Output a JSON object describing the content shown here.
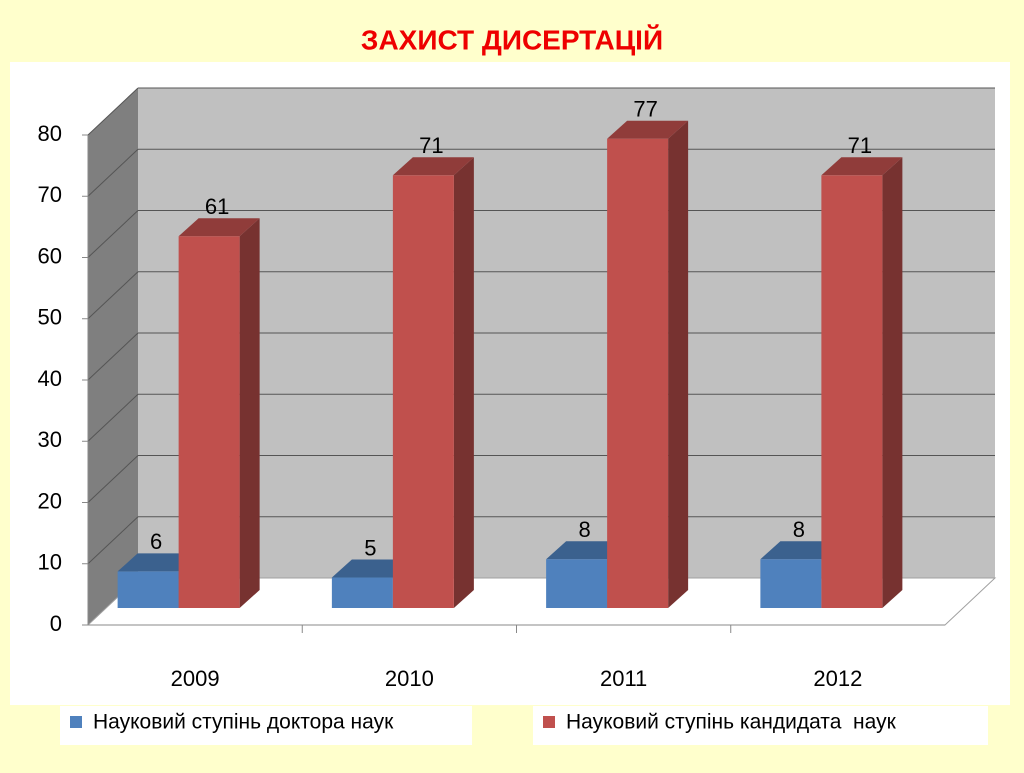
{
  "chart_data": {
    "type": "bar3d",
    "title": "ЗАХИСТ ДИСЕРТАЦІЙ",
    "categories": [
      "2009",
      "2010",
      "2011",
      "2012"
    ],
    "series": [
      {
        "name": "Науковий ступінь доктора наук",
        "color": "#4f81bd",
        "values": [
          6,
          5,
          8,
          8
        ]
      },
      {
        "name": "Науковий ступінь кандидата  наук",
        "color": "#c0504d",
        "values": [
          61,
          71,
          77,
          71
        ]
      }
    ],
    "ylim": [
      0,
      80
    ],
    "yticks": [
      0,
      10,
      20,
      30,
      40,
      50,
      60,
      70,
      80
    ],
    "grid": true,
    "data_labels": true
  }
}
